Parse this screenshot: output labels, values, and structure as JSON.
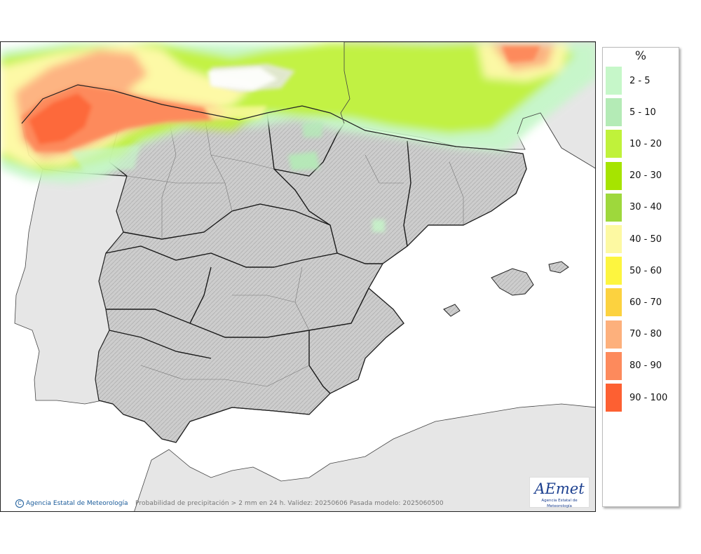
{
  "map": {
    "caption": "Probabilidad de precipitación > 2 mm en 24 h. Validez: 20250606 Pasada modelo: 2025060500",
    "credit": "Agencia Estatal de Meteorología",
    "copyright_symbol": "C",
    "logo": {
      "text": "AEmet",
      "subtitle": "Agencia Estatal de Meteorología"
    }
  },
  "legend": {
    "unit": "%",
    "items": [
      {
        "label": "2 - 5",
        "color": "#c6f7c9"
      },
      {
        "label": "5 - 10",
        "color": "#b4ebb6"
      },
      {
        "label": "10 - 20",
        "color": "#c0f23a"
      },
      {
        "label": "20 - 30",
        "color": "#a6e400"
      },
      {
        "label": "30 - 40",
        "color": "#9ed83c"
      },
      {
        "label": "40 - 50",
        "color": "#fdf9a2"
      },
      {
        "label": "50 - 60",
        "color": "#fdf53f"
      },
      {
        "label": "60 - 70",
        "color": "#fcd23f"
      },
      {
        "label": "70 - 80",
        "color": "#fdb07c"
      },
      {
        "label": "80 - 90",
        "color": "#fd8a5c"
      },
      {
        "label": "90 - 100",
        "color": "#fd6032"
      }
    ]
  },
  "colors": {
    "land_spain": "#cfcfcf",
    "land_other": "#e6e6e6",
    "sea": "#ffffff",
    "border": "#1a1a1a"
  }
}
